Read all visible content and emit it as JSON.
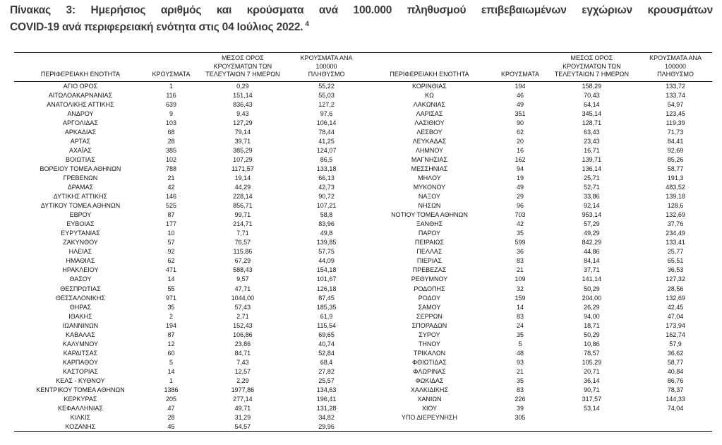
{
  "title": {
    "line1": "Πίνακας 3: Ημερήσιος αριθμός και κρούσματα ανά 100.000 πληθυσμού επιβεβαιωμένων εγχώριων κρουσμάτων",
    "line2": "COVID-19 ανά περιφερειακή ενότητα στις 04 Ιούλιος 2022.",
    "footnote_ref": "4"
  },
  "table": {
    "headers": [
      "ΠΕΡΙΦΕΡΕΙΑΚΗ ΕΝΟΤΗΤΑ",
      "ΚΡΟΥΣΜΑΤΑ",
      "ΜΕΣΟΣ ΟΡΟΣ\nΚΡΟΥΣΜΑΤΩΝ ΤΩΝ\nΤΕΛΕΥΤΑΙΩΝ 7 ΗΜΕΡΩΝ",
      "ΚΡΟΥΣΜΑΤΑ ΑΝΑ 100000\nΠΛΗΘΥΣΜΟ"
    ],
    "left_rows": [
      [
        "ΑΓΙΟ ΟΡΟΣ",
        "1",
        "0,29",
        "55,22"
      ],
      [
        "ΑΙΤΩΛΟΑΚΑΡΝΑΝΙΑΣ",
        "116",
        "151,14",
        "55,03"
      ],
      [
        "ΑΝΑΤΟΛΙΚΗΣ ΑΤΤΙΚΗΣ",
        "639",
        "836,43",
        "127,2"
      ],
      [
        "ΑΝΔΡΟΥ",
        "9",
        "9,43",
        "97,6"
      ],
      [
        "ΑΡΓΟΛΙΔΑΣ",
        "103",
        "127,29",
        "106,14"
      ],
      [
        "ΑΡΚΑΔΙΑΣ",
        "68",
        "79,14",
        "78,44"
      ],
      [
        "ΑΡΤΑΣ",
        "28",
        "39,71",
        "41,25"
      ],
      [
        "ΑΧΑΪΑΣ",
        "385",
        "385,29",
        "124,07"
      ],
      [
        "ΒΟΙΩΤΙΑΣ",
        "102",
        "107,29",
        "86,5"
      ],
      [
        "ΒΟΡΕΙΟΥ ΤΟΜΕΑ ΑΘΗΝΩΝ",
        "788",
        "1171,57",
        "133,18"
      ],
      [
        "ΓΡΕΒΕΝΩΝ",
        "21",
        "19,14",
        "66,13"
      ],
      [
        "ΔΡΑΜΑΣ",
        "42",
        "44,29",
        "42,73"
      ],
      [
        "ΔΥΤΙΚΗΣ ΑΤΤΙΚΗΣ",
        "146",
        "228,14",
        "90,72"
      ],
      [
        "ΔΥΤΙΚΟΥ ΤΟΜΕΑ ΑΘΗΝΩΝ",
        "525",
        "856,71",
        "107,21"
      ],
      [
        "ΕΒΡΟΥ",
        "87",
        "99,71",
        "58,8"
      ],
      [
        "ΕΥΒΟΙΑΣ",
        "177",
        "214,71",
        "83,96"
      ],
      [
        "ΕΥΡΥΤΑΝΙΑΣ",
        "10",
        "7,71",
        "49,8"
      ],
      [
        "ΖΑΚΥΝΘΟΥ",
        "57",
        "76,57",
        "139,85"
      ],
      [
        "ΗΛΕΙΑΣ",
        "92",
        "115,86",
        "57,75"
      ],
      [
        "ΗΜΑΘΙΑΣ",
        "62",
        "67,29",
        "44,09"
      ],
      [
        "ΗΡΑΚΛΕΙΟΥ",
        "471",
        "588,43",
        "154,18"
      ],
      [
        "ΘΑΣΟΥ",
        "14",
        "9,57",
        "101,67"
      ],
      [
        "ΘΕΣΠΡΩΤΙΑΣ",
        "55",
        "47,71",
        "126,18"
      ],
      [
        "ΘΕΣΣΑΛΟΝΙΚΗΣ",
        "971",
        "1044,00",
        "87,45"
      ],
      [
        "ΘΗΡΑΣ",
        "35",
        "57,43",
        "185,35"
      ],
      [
        "ΙΘΑΚΗΣ",
        "2",
        "2,71",
        "61,9"
      ],
      [
        "ΙΩΑΝΝΙΝΩΝ",
        "194",
        "152,43",
        "115,54"
      ],
      [
        "ΚΑΒΑΛΑΣ",
        "87",
        "106,86",
        "69,65"
      ],
      [
        "ΚΑΛΥΜΝΟΥ",
        "12",
        "23,86",
        "40,74"
      ],
      [
        "ΚΑΡΔΙΤΣΑΣ",
        "60",
        "84,71",
        "52,84"
      ],
      [
        "ΚΑΡΠΑΘΟΥ",
        "5",
        "7,43",
        "68,4"
      ],
      [
        "ΚΑΣΤΟΡΙΑΣ",
        "14",
        "12,57",
        "27,82"
      ],
      [
        "ΚΕΑΣ - ΚΥΘΝΟΥ",
        "1",
        "2,29",
        "25,57"
      ],
      [
        "ΚΕΝΤΡΙΚΟΥ ΤΟΜΕΑ ΑΘΗΝΩΝ",
        "1386",
        "1977,86",
        "134,63"
      ],
      [
        "ΚΕΡΚΥΡΑΣ",
        "205",
        "277,14",
        "196,41"
      ],
      [
        "ΚΕΦΑΛΛΗΝΙΑΣ",
        "47",
        "49,71",
        "131,28"
      ],
      [
        "ΚΙΛΚΙΣ",
        "28",
        "31,29",
        "34,82"
      ],
      [
        "ΚΟΖΑΝΗΣ",
        "45",
        "54,57",
        "29,96"
      ]
    ],
    "right_rows": [
      [
        "ΚΟΡΙΝΘΙΑΣ",
        "194",
        "158,29",
        "133,72"
      ],
      [
        "ΚΩ",
        "46",
        "70,43",
        "133,74"
      ],
      [
        "ΛΑΚΩΝΙΑΣ",
        "49",
        "64,14",
        "54,97"
      ],
      [
        "ΛΑΡΙΣΑΣ",
        "351",
        "345,14",
        "123,45"
      ],
      [
        "ΛΑΣΙΘΙΟΥ",
        "90",
        "128,71",
        "119,39"
      ],
      [
        "ΛΕΣΒΟΥ",
        "62",
        "63,43",
        "71,73"
      ],
      [
        "ΛΕΥΚΑΔΑΣ",
        "20",
        "23,43",
        "84,41"
      ],
      [
        "ΛΗΜΝΟΥ",
        "16",
        "16,71",
        "92,69"
      ],
      [
        "ΜΑΓΝΗΣΙΑΣ",
        "162",
        "139,71",
        "85,26"
      ],
      [
        "ΜΕΣΣΗΝΙΑΣ",
        "94",
        "136,14",
        "58,77"
      ],
      [
        "ΜΗΛΟΥ",
        "19",
        "25,71",
        "191,3"
      ],
      [
        "ΜΥΚΟΝΟΥ",
        "49",
        "52,71",
        "483,52"
      ],
      [
        "ΝΑΞΟΥ",
        "29",
        "33,86",
        "139,18"
      ],
      [
        "ΝΗΣΩΝ",
        "96",
        "92,14",
        "128,6"
      ],
      [
        "ΝΟΤΙΟΥ ΤΟΜΕΑ ΑΘΗΝΩΝ",
        "703",
        "953,14",
        "132,69"
      ],
      [
        "ΞΑΝΘΗΣ",
        "42",
        "57,29",
        "37,76"
      ],
      [
        "ΠΑΡΟΥ",
        "35",
        "49,29",
        "234,49"
      ],
      [
        "ΠΕΙΡΑΙΩΣ",
        "599",
        "842,29",
        "133,41"
      ],
      [
        "ΠΕΛΛΑΣ",
        "36",
        "44,86",
        "25,77"
      ],
      [
        "ΠΙΕΡΙΑΣ",
        "83",
        "84,14",
        "65,51"
      ],
      [
        "ΠΡΕΒΕΖΑΣ",
        "21",
        "37,71",
        "36,53"
      ],
      [
        "ΡΕΘΥΜΝΟΥ",
        "109",
        "141,14",
        "127,32"
      ],
      [
        "ΡΟΔΟΠΗΣ",
        "32",
        "50,29",
        "28,56"
      ],
      [
        "ΡΟΔΟΥ",
        "159",
        "204,00",
        "132,69"
      ],
      [
        "ΣΑΜΟΥ",
        "14",
        "26,29",
        "42,45"
      ],
      [
        "ΣΕΡΡΩΝ",
        "83",
        "94,00",
        "47,04"
      ],
      [
        "ΣΠΟΡΑΔΩΝ",
        "24",
        "18,71",
        "173,94"
      ],
      [
        "ΣΥΡΟΥ",
        "35",
        "50,29",
        "162,74"
      ],
      [
        "ΤΗΝΟΥ",
        "5",
        "10,86",
        "57,9"
      ],
      [
        "ΤΡΙΚΑΛΩΝ",
        "48",
        "78,57",
        "36,62"
      ],
      [
        "ΦΘΙΩΤΙΔΑΣ",
        "93",
        "105,29",
        "58,77"
      ],
      [
        "ΦΛΩΡΙΝΑΣ",
        "21",
        "20,71",
        "40,84"
      ],
      [
        "ΦΩΚΙΔΑΣ",
        "35",
        "36,14",
        "86,76"
      ],
      [
        "ΧΑΛΚΙΔΙΚΗΣ",
        "83",
        "90,71",
        "78,37"
      ],
      [
        "ΧΑΝΙΩΝ",
        "226",
        "317,57",
        "144,33"
      ],
      [
        "ΧΙΟΥ",
        "39",
        "53,14",
        "74,04"
      ],
      [
        "ΥΠΟ ΔΙΕΡΕΥΝΗΣΗ",
        "305",
        "",
        ""
      ]
    ]
  },
  "colors": {
    "text": "#141414",
    "title_text": "#3a3a3a",
    "rule": "#000000",
    "background": "#ffffff"
  }
}
